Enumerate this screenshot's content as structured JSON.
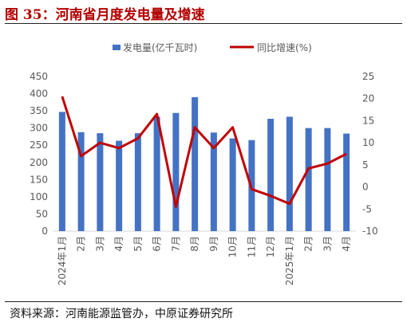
{
  "title": "图 35：河南省月度发电量及增速",
  "source": "资料来源：河南能源监管办，中原证券研究所",
  "legend": {
    "bar_label": "发电量(亿千瓦时)",
    "line_label": "同比增速(%)"
  },
  "colors": {
    "bar": "#4472c4",
    "line": "#c00000",
    "title": "#b30000"
  },
  "chart_data": {
    "type": "bar",
    "categories": [
      "2024年1月",
      "2月",
      "3月",
      "4月",
      "5月",
      "6月",
      "7月",
      "8月",
      "9月",
      "10月",
      "11月",
      "12月",
      "2025年1月",
      "2月",
      "3月",
      "4月"
    ],
    "series": [
      {
        "name": "发电量(亿千瓦时)",
        "type": "bar",
        "axis": "left",
        "values": [
          347,
          288,
          285,
          263,
          285,
          333,
          344,
          390,
          287,
          270,
          265,
          327,
          333,
          300,
          300,
          284
        ]
      },
      {
        "name": "同比增速(%)",
        "type": "line",
        "axis": "right",
        "values": [
          20.5,
          7.0,
          10.0,
          8.8,
          11.0,
          16.5,
          -4.5,
          13.5,
          8.8,
          13.5,
          -0.5,
          -2.0,
          -3.8,
          4.2,
          5.3,
          7.5
        ]
      }
    ],
    "y_left": {
      "min": 0,
      "max": 450,
      "step": 50,
      "ticks": [
        "0",
        "50",
        "100",
        "150",
        "200",
        "250",
        "300",
        "350",
        "400",
        "450"
      ]
    },
    "y_right": {
      "min": -10,
      "max": 25,
      "step": 5,
      "ticks": [
        "-10",
        "-5",
        "0",
        "5",
        "10",
        "15",
        "20",
        "25"
      ]
    },
    "legend_position": "top-center",
    "grid": false
  }
}
